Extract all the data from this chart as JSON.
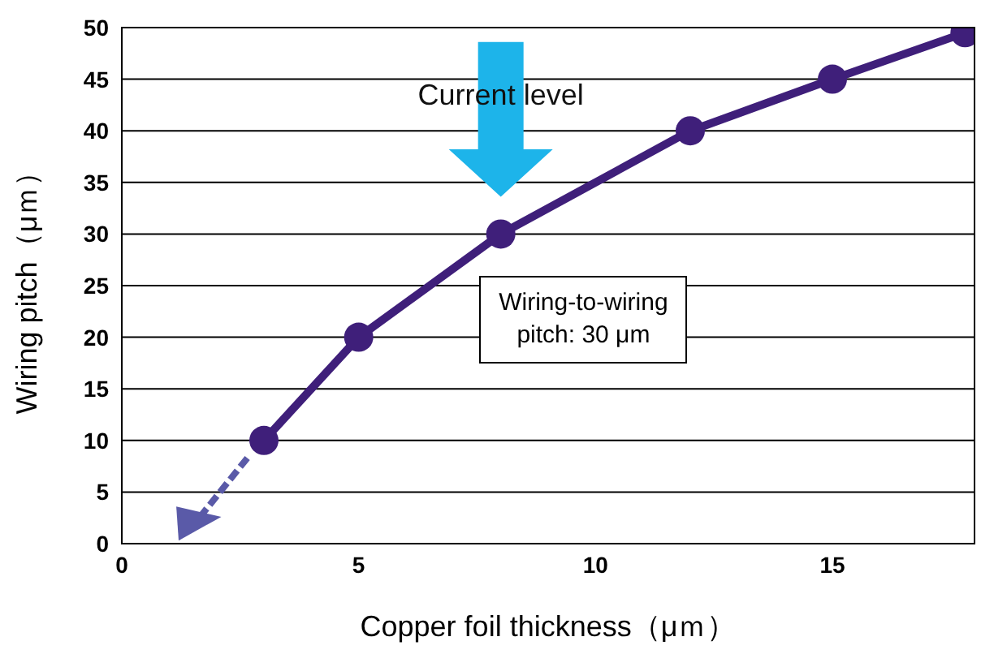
{
  "chart_data": {
    "type": "line",
    "xlabel": "Copper foil thickness（μｍ）",
    "ylabel": "Wiring pitch（μｍ）",
    "x": [
      3,
      5,
      8,
      12,
      15,
      17.8
    ],
    "series": [
      {
        "color": "#3f1f7a",
        "values": [
          10,
          20,
          30,
          40,
          45,
          49.5
        ]
      }
    ],
    "xlim": [
      0,
      18
    ],
    "xticks": [
      0,
      5,
      10,
      15
    ],
    "ylim": [
      0,
      50
    ],
    "yticks": [
      0,
      5,
      10,
      15,
      20,
      25,
      30,
      35,
      40,
      45,
      50
    ],
    "grid": "y",
    "marker": "circle",
    "line_style": "solid",
    "annotations": [
      "Current level",
      "Wiring-to-wiring pitch: 30 μm"
    ]
  }
}
